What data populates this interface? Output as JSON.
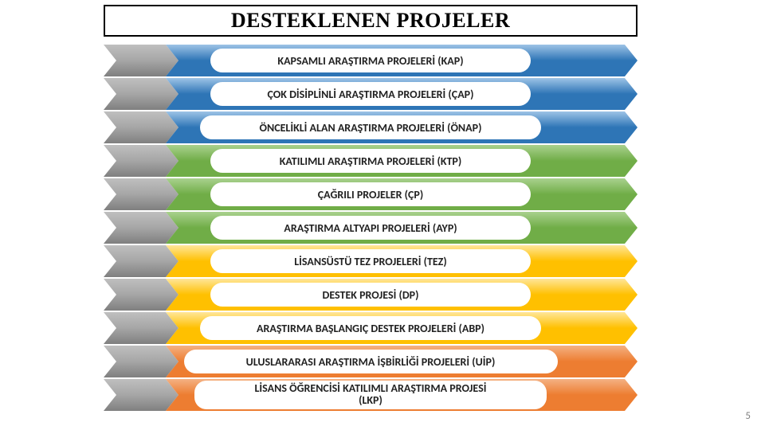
{
  "title": "DESTEKLENEN PROJELER",
  "page_number": "5",
  "diagram": {
    "type": "infographic",
    "background_color": "#ffffff",
    "title_box": {
      "border_color": "#000000",
      "border_width": 2,
      "font_family": "Times New Roman",
      "font_size": 26,
      "font_weight": "bold"
    },
    "item_style": {
      "height": 40,
      "pill_height": 30,
      "pill_bg": "#ffffff",
      "label_font_size": 14,
      "label_font_weight": "bold",
      "label_color": "#222222"
    },
    "chevron_colors": {
      "left_start": "#bfbfbf",
      "left_mid": "#a6a6a6",
      "left_end": "#7f7f7f"
    },
    "items": [
      {
        "label": "KAPSAMLI ARAŞTIRMA PROJELERİ (KAP)",
        "color": "#2e75b6",
        "color_light": "#9dc3e6",
        "pill_width": 56
      },
      {
        "label": "ÇOK DİSİPLİNLİ ARAŞTIRMA PROJELERİ (ÇAP)",
        "color": "#2e75b6",
        "color_light": "#9dc3e6",
        "pill_width": 60
      },
      {
        "label": "ÖNCELİKLİ ALAN ARAŞTIRMA PROJELERİ (ÖNAP)",
        "color": "#2e75b6",
        "color_light": "#9dc3e6",
        "pill_width": 64
      },
      {
        "label": "KATILIMLI ARAŞTIRMA PROJELERİ (KTP)",
        "color": "#70ad47",
        "color_light": "#a9d18e",
        "pill_width": 56
      },
      {
        "label": "ÇAĞRILI PROJELER (ÇP)",
        "color": "#70ad47",
        "color_light": "#a9d18e",
        "pill_width": 40
      },
      {
        "label": "ARAŞTIRMA ALTYAPI PROJELERİ (AYP)",
        "color": "#70ad47",
        "color_light": "#a9d18e",
        "pill_width": 52
      },
      {
        "label": "LİSANSÜSTÜ TEZ PROJELERİ (TEZ)",
        "color": "#ffc000",
        "color_light": "#ffe699",
        "pill_width": 48
      },
      {
        "label": "DESTEK PROJESİ (DP)",
        "color": "#ffc000",
        "color_light": "#ffe699",
        "pill_width": 38
      },
      {
        "label": "ARAŞTIRMA BAŞLANGIÇ DESTEK PROJELERİ (ABP)",
        "color": "#ffc000",
        "color_light": "#ffe699",
        "pill_width": 64
      },
      {
        "label": "ULUSLARARASI ARAŞTIRMA İŞBİRLİĞİ PROJELERİ (UİP)",
        "color": "#ed7d31",
        "color_light": "#f4b183",
        "pill_width": 70
      },
      {
        "label": "LİSANS ÖĞRENCİSİ KATILIMLI ARAŞTIRMA PROJESİ\n(LKP)",
        "color": "#ed7d31",
        "color_light": "#f4b183",
        "pill_width": 66
      }
    ]
  }
}
